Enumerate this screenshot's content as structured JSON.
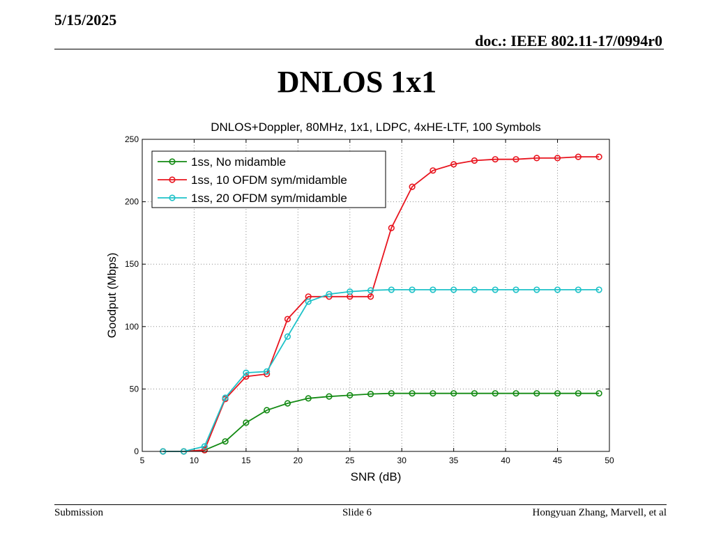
{
  "header": {
    "date": "5/15/2025",
    "doc": "doc.: IEEE 802.11-17/0994r0"
  },
  "slide_title": "DNLOS 1x1",
  "footer": {
    "left": "Submission",
    "center": "Slide 6",
    "right": "Hongyuan Zhang, Marvell, et al"
  },
  "chart_data": {
    "type": "line",
    "title": "DNLOS+Doppler, 80MHz, 1x1, LDPC, 4xHE-LTF, 100 Symbols",
    "xlabel": "SNR (dB)",
    "ylabel": "Goodput (Mbps)",
    "xlim": [
      5,
      50
    ],
    "ylim": [
      0,
      250
    ],
    "xticks": [
      5,
      10,
      15,
      20,
      25,
      30,
      35,
      40,
      45,
      50
    ],
    "yticks": [
      0,
      50,
      100,
      150,
      200,
      250
    ],
    "grid": true,
    "legend_position": "top-left",
    "x": [
      7,
      9,
      11,
      13,
      15,
      17,
      19,
      21,
      23,
      25,
      27,
      29,
      31,
      33,
      35,
      37,
      39,
      41,
      43,
      45,
      47,
      49
    ],
    "series": [
      {
        "name": "1ss, No midamble",
        "color": "#138a13",
        "values": [
          0,
          0,
          1,
          8,
          23,
          33,
          38.5,
          42.5,
          44,
          45,
          46,
          46.5,
          46.5,
          46.5,
          46.5,
          46.5,
          46.5,
          46.5,
          46.5,
          46.5,
          46.5,
          46.5
        ]
      },
      {
        "name": "1ss, 10 OFDM sym/midamble",
        "color": "#e8141e",
        "values": [
          0,
          0,
          1,
          42,
          60,
          62,
          106,
          124,
          124,
          124,
          124,
          179,
          212,
          225,
          230,
          233,
          234,
          234,
          235,
          235,
          236,
          236
        ]
      },
      {
        "name": "1ss, 20 OFDM sym/midamble",
        "color": "#1ec2c8",
        "values": [
          0,
          0,
          4,
          43,
          63,
          64,
          92,
          120,
          126,
          128,
          129,
          129.5,
          129.5,
          129.5,
          129.5,
          129.5,
          129.5,
          129.5,
          129.5,
          129.5,
          129.5,
          129.5
        ]
      }
    ]
  }
}
